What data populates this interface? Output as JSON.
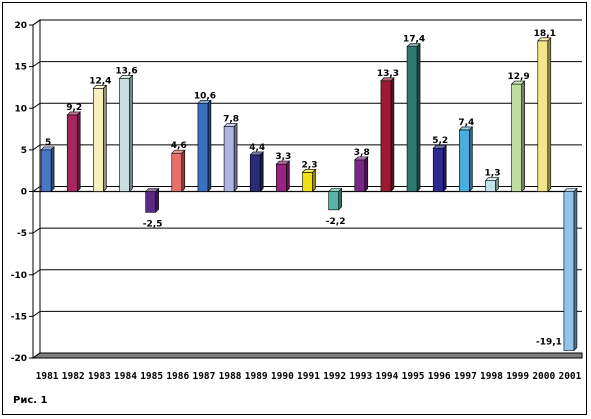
{
  "caption": "Рис. 1",
  "chart_data": {
    "type": "bar",
    "categories": [
      "1981",
      "1982",
      "1983",
      "1984",
      "1985",
      "1986",
      "1987",
      "1988",
      "1989",
      "1990",
      "1991",
      "1992",
      "1993",
      "1994",
      "1995",
      "1996",
      "1997",
      "1998",
      "1999",
      "2000",
      "2001"
    ],
    "values": [
      5,
      9.2,
      12.4,
      13.6,
      -2.5,
      4.6,
      10.6,
      7.8,
      4.4,
      3.3,
      2.3,
      -2.2,
      3.8,
      13.3,
      17.4,
      5.2,
      7.4,
      1.3,
      12.9,
      18.1,
      -19.1
    ],
    "data_labels": [
      "5",
      "9,2",
      "12,4",
      "13,6",
      "-2,5",
      "4,6",
      "10,6",
      "7,8",
      "4,4",
      "3,3",
      "2,3",
      "-2,2",
      "3,8",
      "13,3",
      "17,4",
      "5,2",
      "7,4",
      "1,3",
      "12,9",
      "18,1",
      "-19,1"
    ],
    "colors": [
      "#4a78c8",
      "#a8285e",
      "#f6f0c0",
      "#c6dee0",
      "#5a2a82",
      "#e8706a",
      "#3a70c0",
      "#b0b4e4",
      "#2a2a7a",
      "#9a2282",
      "#f0e010",
      "#58b4a8",
      "#7a2688",
      "#9e1a34",
      "#2e7a70",
      "#2a2a92",
      "#48aee0",
      "#c0e4ea",
      "#c0dca0",
      "#f4e48a",
      "#90c4ec"
    ],
    "ylim": [
      -20,
      20
    ],
    "yticks": [
      20,
      15,
      10,
      5,
      0,
      -5,
      -10,
      -15,
      -20
    ],
    "ytick_labels": [
      "20",
      "15",
      "10",
      "5",
      "0",
      "-5",
      "-10",
      "-15",
      "-20"
    ],
    "grid": true,
    "title": "",
    "xlabel": "",
    "ylabel": ""
  }
}
